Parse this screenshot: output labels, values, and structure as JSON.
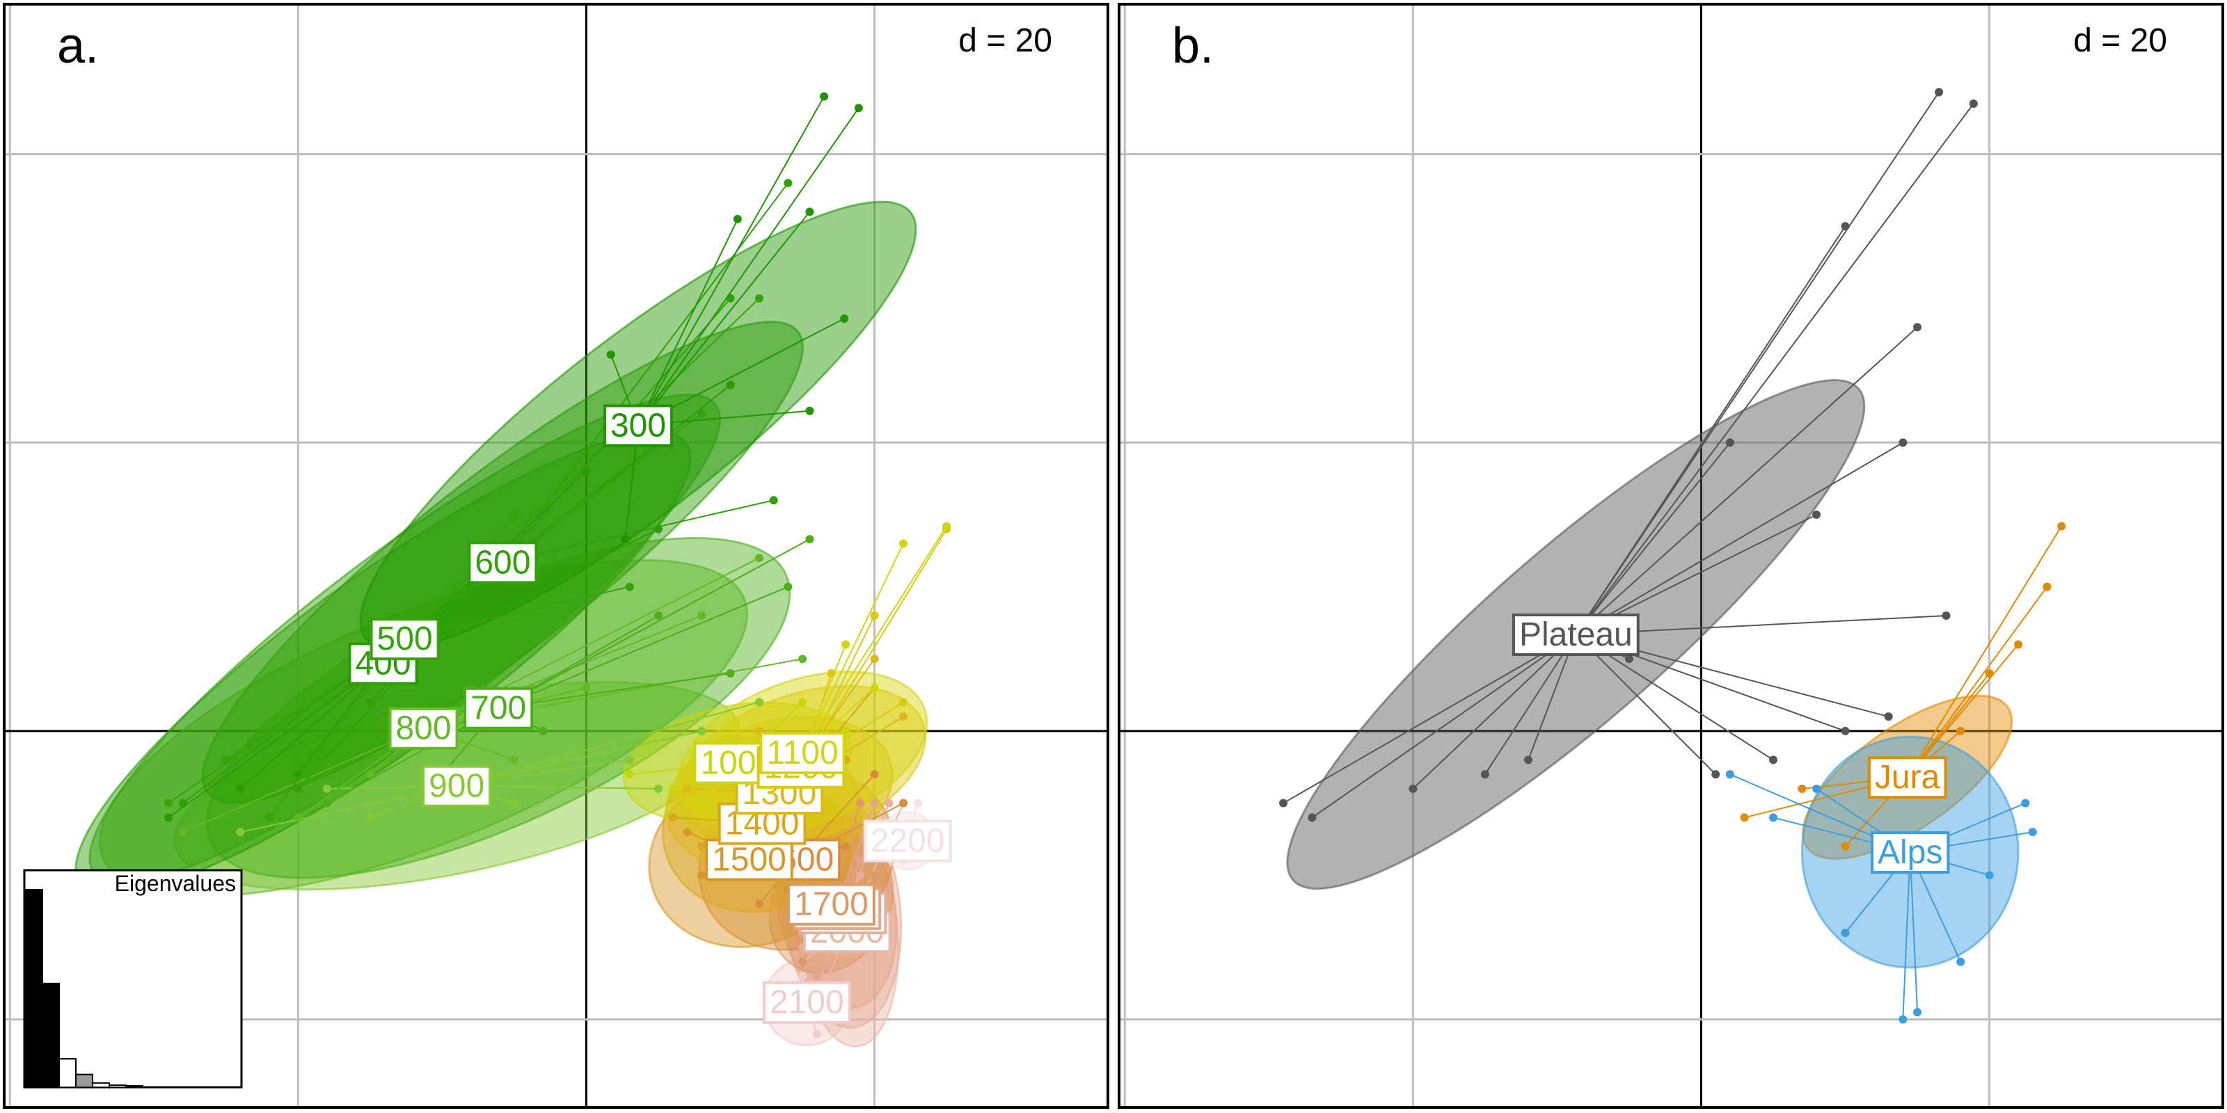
{
  "chart_data": [
    {
      "type": "scatter",
      "panel_label": "a.",
      "grid_label": "d = 20",
      "xlim": [
        -40.4,
        36.2
      ],
      "ylim": [
        -26.1,
        50.4
      ],
      "xticks": [
        -40,
        -20,
        0,
        20
      ],
      "yticks": [
        -20,
        0,
        20,
        40
      ],
      "groups": [
        {
          "label": "900",
          "color": "#86c932",
          "centroid": [
            -9,
            -3.8
          ],
          "ellipse": [
            20,
            6,
            12
          ],
          "points": [
            [
              -24,
              -7
            ],
            [
              -15,
              -6
            ],
            [
              3,
              -2
            ],
            [
              8,
              0
            ],
            [
              -5,
              -5
            ],
            [
              -18,
              -4
            ],
            [
              12,
              2
            ],
            [
              5,
              -4
            ]
          ]
        },
        {
          "label": "800",
          "color": "#63ba25",
          "centroid": [
            -11.3,
            0.2
          ],
          "ellipse": [
            24,
            8,
            22
          ],
          "points": [
            [
              -28,
              -7
            ],
            [
              -20,
              -6
            ],
            [
              12,
              12
            ],
            [
              0,
              3
            ],
            [
              -15,
              -3
            ],
            [
              8,
              8
            ],
            [
              -5,
              -2
            ],
            [
              15,
              5
            ]
          ]
        },
        {
          "label": "700",
          "color": "#4caf1a",
          "centroid": [
            -6.1,
            1.6
          ],
          "ellipse": [
            22,
            8,
            25
          ],
          "points": [
            [
              15.5,
              13.3
            ],
            [
              14,
              10
            ],
            [
              -25,
              -6
            ],
            [
              -10,
              -3
            ],
            [
              5,
              8
            ],
            [
              -18,
              -5
            ],
            [
              10,
              4
            ],
            [
              -3,
              0
            ]
          ]
        },
        {
          "label": "400",
          "color": "#2a9d05",
          "centroid": [
            -14.1,
            4.7
          ],
          "ellipse": [
            26,
            6,
            36
          ],
          "points": [
            [
              -29,
              -6
            ],
            [
              -20,
              -3
            ],
            [
              0,
              18
            ],
            [
              -8,
              10
            ],
            [
              10,
              24
            ],
            [
              -24,
              -4
            ],
            [
              -15,
              4
            ],
            [
              5,
              14
            ]
          ]
        },
        {
          "label": "500",
          "color": "#36a30a",
          "centroid": [
            -12.6,
            6.4
          ],
          "ellipse": [
            27,
            6,
            37
          ],
          "points": [
            [
              -29,
              -5
            ],
            [
              -25,
              -2
            ],
            [
              12,
              30
            ],
            [
              -5,
              15
            ],
            [
              -18,
              2
            ],
            [
              8,
              22
            ],
            [
              -22,
              -6
            ],
            [
              3,
              10
            ]
          ]
        },
        {
          "label": "600",
          "color": "#2fa005",
          "centroid": [
            -5.8,
            11.7
          ],
          "ellipse": [
            26,
            6,
            38
          ],
          "points": [
            [
              14,
              38
            ],
            [
              10,
              30
            ],
            [
              -15,
              2
            ],
            [
              -28,
              -5
            ],
            [
              5,
              20
            ],
            [
              -20,
              -4
            ],
            [
              13,
              16
            ],
            [
              -10,
              8
            ]
          ]
        },
        {
          "label": "300",
          "color": "#1e9600",
          "centroid": [
            3.6,
            21.2
          ],
          "ellipse": [
            24,
            6,
            38
          ],
          "points": [
            [
              16.5,
              44
            ],
            [
              18.9,
              43.2
            ],
            [
              15.5,
              36
            ],
            [
              10.5,
              35.5
            ],
            [
              17.9,
              28.6
            ],
            [
              1.7,
              26.1
            ],
            [
              15.5,
              22.2
            ],
            [
              2.7,
              13.3
            ]
          ]
        },
        {
          "label": "2100",
          "color": "#f0cccc",
          "centroid": [
            15.3,
            -18.8
          ],
          "ellipse": [
            3,
            3,
            0
          ],
          "points": [
            [
              14,
              -20
            ],
            [
              16,
              -21
            ],
            [
              15,
              -17
            ],
            [
              17,
              -19
            ]
          ]
        },
        {
          "label": "2000",
          "color": "#e8b8a8",
          "centroid": [
            18.1,
            -13.9
          ],
          "ellipse": [
            3.5,
            8,
            5
          ],
          "points": [
            [
              22,
              -5
            ],
            [
              16,
              -19
            ],
            [
              19,
              -11
            ],
            [
              15,
              -16
            ],
            [
              20,
              -14
            ]
          ]
        },
        {
          "label": "1900",
          "color": "#e6ae9c",
          "centroid": [
            17.8,
            -12.6
          ],
          "ellipse": [
            4,
            8,
            5
          ],
          "points": [
            [
              21,
              -5
            ],
            [
              16,
              -18
            ],
            [
              19,
              -10
            ],
            [
              15,
              -15
            ],
            [
              20,
              -13
            ]
          ]
        },
        {
          "label": "1800",
          "color": "#e2a68a",
          "centroid": [
            17.4,
            -12.3
          ],
          "ellipse": [
            4,
            7,
            10
          ],
          "points": [
            [
              20,
              -5
            ],
            [
              16,
              -17
            ],
            [
              19,
              -9
            ],
            [
              15,
              -14
            ],
            [
              21,
              -11
            ]
          ]
        },
        {
          "label": "1700",
          "color": "#dd9a68",
          "centroid": [
            17,
            -12
          ],
          "ellipse": [
            5,
            4,
            60
          ],
          "points": [
            [
              19,
              -5
            ],
            [
              15,
              -16
            ],
            [
              18,
              -8
            ],
            [
              14,
              -13
            ],
            [
              20,
              -10
            ]
          ]
        },
        {
          "label": "1600",
          "color": "#d98d40",
          "centroid": [
            14.6,
            -8.9
          ],
          "ellipse": [
            7,
            6,
            30
          ],
          "points": [
            [
              20,
              -3
            ],
            [
              12,
              -12
            ],
            [
              18,
              -8
            ],
            [
              10,
              -6
            ],
            [
              16,
              -13
            ],
            [
              22,
              -5
            ]
          ]
        },
        {
          "label": "1500",
          "color": "#d89728",
          "centroid": [
            11.3,
            -8.9
          ],
          "ellipse": [
            7,
            6,
            15
          ],
          "points": [
            [
              18,
              0
            ],
            [
              8,
              -10
            ],
            [
              16,
              -5
            ],
            [
              7,
              -7
            ],
            [
              14,
              -11
            ],
            [
              10,
              -6
            ]
          ]
        },
        {
          "label": "1400",
          "color": "#d9a61e",
          "centroid": [
            12.2,
            -6.4
          ],
          "ellipse": [
            7,
            6,
            20
          ],
          "points": [
            [
              20,
              3
            ],
            [
              8,
              -8
            ],
            [
              18,
              -2
            ],
            [
              6,
              -6
            ],
            [
              14,
              -9
            ],
            [
              10,
              -3
            ]
          ]
        },
        {
          "label": "1300",
          "color": "#ddb818",
          "centroid": [
            13.4,
            -4.3
          ],
          "ellipse": [
            8,
            5,
            15
          ],
          "points": [
            [
              20,
              5
            ],
            [
              10,
              -6
            ],
            [
              22,
              1
            ],
            [
              7,
              -4
            ],
            [
              15,
              -7
            ],
            [
              12,
              0
            ]
          ]
        },
        {
          "label": "1000",
          "color": "#c8d60a",
          "centroid": [
            10.5,
            -2.2
          ],
          "ellipse": [
            8,
            4,
            10
          ],
          "points": [
            [
              3,
              -3
            ],
            [
              6,
              -4
            ],
            [
              15,
              2
            ],
            [
              12,
              -1
            ],
            [
              8,
              -5
            ],
            [
              18,
              0
            ]
          ]
        },
        {
          "label": "1200",
          "color": "#dcc810",
          "centroid": [
            14.9,
            -2.5
          ],
          "ellipse": [
            9,
            5,
            20
          ],
          "points": [
            [
              25,
              14
            ],
            [
              20,
              8
            ],
            [
              9,
              -4
            ],
            [
              22,
              2
            ],
            [
              13,
              -5
            ],
            [
              17,
              4
            ]
          ]
        },
        {
          "label": "1100",
          "color": "#d6d40c",
          "centroid": [
            15,
            -1.5
          ],
          "ellipse": [
            9,
            5,
            20
          ],
          "points": [
            [
              25,
              14.2
            ],
            [
              22,
              13
            ],
            [
              10,
              -3
            ],
            [
              20,
              3
            ],
            [
              14,
              -4
            ],
            [
              18,
              6
            ]
          ]
        },
        {
          "label": "2200",
          "color": "#f4e2e2",
          "centroid": [
            22.3,
            -7.6
          ],
          "ellipse": [
            2,
            2,
            0
          ],
          "points": [
            [
              23,
              -5
            ],
            [
              21,
              -8
            ],
            [
              22,
              -9
            ]
          ]
        }
      ],
      "eigenvalues": {
        "title": "Eigenvalues",
        "values": [
          139,
          73,
          20,
          9,
          3,
          1.5,
          1
        ]
      }
    },
    {
      "type": "scatter",
      "panel_label": "b.",
      "grid_label": "d = 20",
      "xlim": [
        -40.4,
        36.2
      ],
      "ylim": [
        -26.1,
        50.4
      ],
      "xticks": [
        -40,
        -20,
        0,
        20
      ],
      "yticks": [
        -20,
        0,
        20,
        40
      ],
      "groups": [
        {
          "label": "Plateau",
          "color": "#555555",
          "centroid": [
            -8.7,
            6.7
          ],
          "ellipse": [
            26,
            6,
            41
          ],
          "points": [
            [
              16.5,
              44.3
            ],
            [
              18.9,
              43.5
            ],
            [
              10,
              35
            ],
            [
              15,
              28
            ],
            [
              17,
              8
            ],
            [
              13,
              1
            ],
            [
              1,
              -3
            ],
            [
              -29,
              -5
            ],
            [
              -27,
              -6
            ],
            [
              -20,
              -4
            ],
            [
              -12,
              -2
            ],
            [
              2,
              20
            ],
            [
              -5,
              5
            ],
            [
              8,
              15
            ],
            [
              14,
              20
            ],
            [
              10,
              0
            ],
            [
              5,
              -2
            ],
            [
              -15,
              -3
            ]
          ]
        },
        {
          "label": "Jura",
          "color": "#e08a00",
          "centroid": [
            14.3,
            -3.2
          ],
          "ellipse": [
            8.5,
            3.5,
            35
          ],
          "points": [
            [
              25,
              14.2
            ],
            [
              24,
              10
            ],
            [
              20,
              4
            ],
            [
              7,
              -4
            ],
            [
              3,
              -6
            ],
            [
              10,
              -8
            ],
            [
              18,
              0
            ],
            [
              22,
              6
            ]
          ]
        },
        {
          "label": "Alps",
          "color": "#3a9ee0",
          "centroid": [
            14.5,
            -8.4
          ],
          "ellipse": [
            7.5,
            8,
            0
          ],
          "points": [
            [
              2,
              -3
            ],
            [
              5,
              -6
            ],
            [
              22.5,
              -5
            ],
            [
              23,
              -7
            ],
            [
              15,
              -19.5
            ],
            [
              14,
              -20
            ],
            [
              18,
              -16
            ],
            [
              10,
              -14
            ],
            [
              20,
              -10
            ],
            [
              8,
              -4
            ]
          ]
        }
      ]
    }
  ]
}
